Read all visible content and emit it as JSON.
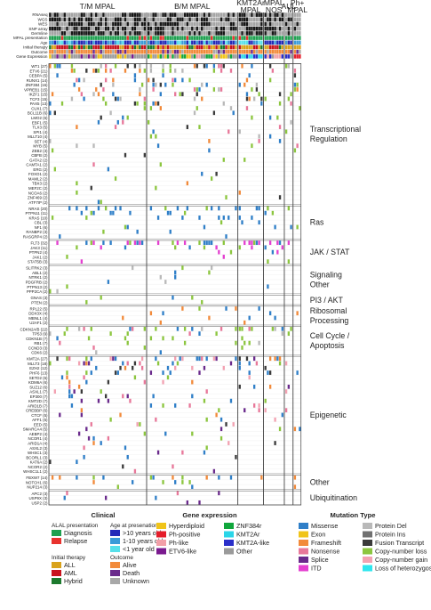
{
  "chart_data": {
    "type": "heatmap",
    "subtypes": [
      {
        "label": "T/M MPAL",
        "cols": 40
      },
      {
        "label": "B/M MPAL",
        "cols": 37
      },
      {
        "label": "KMT2Ar\nMPAL",
        "cols": 10
      },
      {
        "label": "MPAL\nNOS",
        "cols": 8
      },
      {
        "label": "AUL",
        "cols": 3
      },
      {
        "label": "Ph+\nMPAL",
        "cols": 3
      }
    ],
    "annotation_tracks": [
      "RNAseq",
      "WGS",
      "WES",
      "SNP array",
      "Germline",
      "MPAL presentation",
      "Age",
      "Initial therapy",
      "Outcome",
      "Gene Expression"
    ],
    "gene_groups": [
      {
        "label": "Transcriptional\nRegulation",
        "genes": [
          "WT1 (27)",
          "ETV6 (21)",
          "CEBPA (5)",
          "RUNX1 (14)",
          "ZNF384 (16)",
          "VPREB1 (15)",
          "IKZF1 (15)",
          "TCF3 (15)",
          "PAX5 (13)",
          "CUX1 (7)",
          "BCL11B (6)",
          "LMO2 (6)",
          "EBF1 (5)",
          "TLX3 (5)",
          "SPI1 (4)",
          "MLLT10 (4)",
          "SET (4)",
          "MYB (5)",
          "ZEB2 (3)",
          "CBFB (2)",
          "GATA2 (2)",
          "CAMTA1 (2)",
          "ERG (2)",
          "FOXO1 (2)",
          "MAML2 (2)",
          "TBX3 (2)",
          "MEF2C (2)",
          "NCOA6 (2)",
          "ZNF469 (2)",
          "ATF7IP (2)"
        ]
      },
      {
        "label": "Ras",
        "genes": [
          "NRAS (20)",
          "PTPN11 (11)",
          "KRAS (10)",
          "CBL (3)",
          "NF1 (6)",
          "RANBP2 (3)",
          "RASGRP4 (2)"
        ]
      },
      {
        "label": "JAK / STAT",
        "genes": [
          "FLT3 (32)",
          "JAK3 (11)",
          "PTPN2 (4)",
          "JAK1 (2)",
          "STAT5B (3)"
        ]
      },
      {
        "label": "Signaling\nOther",
        "genes": [
          "SLITRK2 (3)",
          "ABL1 (2)",
          "NTRK1 (2)",
          "PDGFRB (2)",
          "PTPN13 (2)",
          "PPP2CA (2)"
        ]
      },
      {
        "label": "PI3 / AKT",
        "genes": [
          "GNAS (3)",
          "PTEN (2)"
        ]
      },
      {
        "label": "Ribosomal\nProcessing",
        "genes": [
          "RPL22 (5)",
          "DDX3X (4)",
          "MBNL1 (4)",
          "U2AF1 (2)"
        ]
      },
      {
        "label": "Cell Cycle /\nApoptosis",
        "genes": [
          "CDKN2A/B (22)",
          "TP53 (9)",
          "CDKN1B (7)",
          "RB1 (7)",
          "CCND3 (3)",
          "CDK6 (2)"
        ]
      },
      {
        "label": "Epigenetic",
        "genes": [
          "KMT2A (27)",
          "MLLT3 (18)",
          "EZH2 (12)",
          "PHF6 (13)",
          "SETD2 (6)",
          "KDM6A (6)",
          "SUZ12 (6)",
          "ASXL1 (7)",
          "EP300 (7)",
          "KMT2D (7)",
          "ARID1B (7)",
          "CREBBP (6)",
          "CTCF (5)",
          "AFF1 (5)",
          "EED (5)",
          "SMARCA4 (5)",
          "AEBP2 (4)",
          "NCOR1 (4)",
          "ARID1A (4)",
          "ASXL2 (3)",
          "WHSC1 (3)",
          "BCORL1 (3)",
          "KAT6A (2)",
          "NCOR2 (2)",
          "WHSC1L1 (2)"
        ]
      },
      {
        "label": "Other",
        "genes": [
          "FBXW7 (14)",
          "NOTCH1 (6)",
          "NUP214 (3)"
        ]
      },
      {
        "label": "Ubiquitination",
        "genes": [
          "APC2 (3)",
          "USP9X (3)",
          "USP2 (2)"
        ]
      }
    ],
    "legend": {
      "clinical": {
        "title": "Clinical",
        "presentation": {
          "title": "ALAL presentation",
          "items": [
            {
              "label": "Diagnosis",
              "color": "#1fa050"
            },
            {
              "label": "Relapse",
              "color": "#e8322e"
            }
          ]
        },
        "therapy": {
          "title": "Initial therapy",
          "items": [
            {
              "label": "ALL",
              "color": "#d9a21b"
            },
            {
              "label": "AML",
              "color": "#c8141e"
            },
            {
              "label": "Hybrid",
              "color": "#1d7a2e"
            }
          ]
        },
        "age": {
          "title": "Age at presenation",
          "items": [
            {
              "label": ">10 years old",
              "color": "#2329b8"
            },
            {
              "label": "1-10 years old",
              "color": "#3a9bd8"
            },
            {
              "label": "<1 year old",
              "color": "#57e0ea"
            }
          ]
        },
        "outcome": {
          "title": "Outcome",
          "items": [
            {
              "label": "Alive",
              "color": "#f28a3a"
            },
            {
              "label": "Death",
              "color": "#6a2a8c"
            },
            {
              "label": "Unknown",
              "color": "#a8a8a8"
            }
          ]
        }
      },
      "expression": {
        "title": "Gene expression",
        "items": [
          {
            "label": "Hyperdiploid",
            "color": "#f0c419"
          },
          {
            "label": "Ph-positive",
            "color": "#e51d2a"
          },
          {
            "label": "Ph-like",
            "color": "#f2a0a8"
          },
          {
            "label": "ETV6-like",
            "color": "#7a1a8f"
          },
          {
            "label": "ZNF384r",
            "color": "#11a63c"
          },
          {
            "label": "KMT2Ar",
            "color": "#2ad5e8"
          },
          {
            "label": "KMT2A-like",
            "color": "#2a2fc9"
          },
          {
            "label": "Other",
            "color": "#9a9a9a"
          }
        ]
      },
      "mutation": {
        "title": "Mutation Type",
        "items": [
          {
            "label": "Missense",
            "color": "#2f7fc8"
          },
          {
            "label": "Exon",
            "color": "#f0c419"
          },
          {
            "label": "Frameshift",
            "color": "#f28a3a"
          },
          {
            "label": "Nonsense",
            "color": "#e8789a"
          },
          {
            "label": "Splice",
            "color": "#6a2a8c"
          },
          {
            "label": "ITD",
            "color": "#e43fd0"
          },
          {
            "label": "Protein Del",
            "color": "#b9b9b9"
          },
          {
            "label": "Protein Ins",
            "color": "#707070"
          },
          {
            "label": "Fusion Transcript",
            "color": "#3a3a3a"
          },
          {
            "label": "Copy-number loss",
            "color": "#8cc63f"
          },
          {
            "label": "Copy-number gain",
            "color": "#f3a2b2"
          },
          {
            "label": "Loss of heterozygosity",
            "color": "#2ee6ee"
          }
        ]
      }
    }
  }
}
